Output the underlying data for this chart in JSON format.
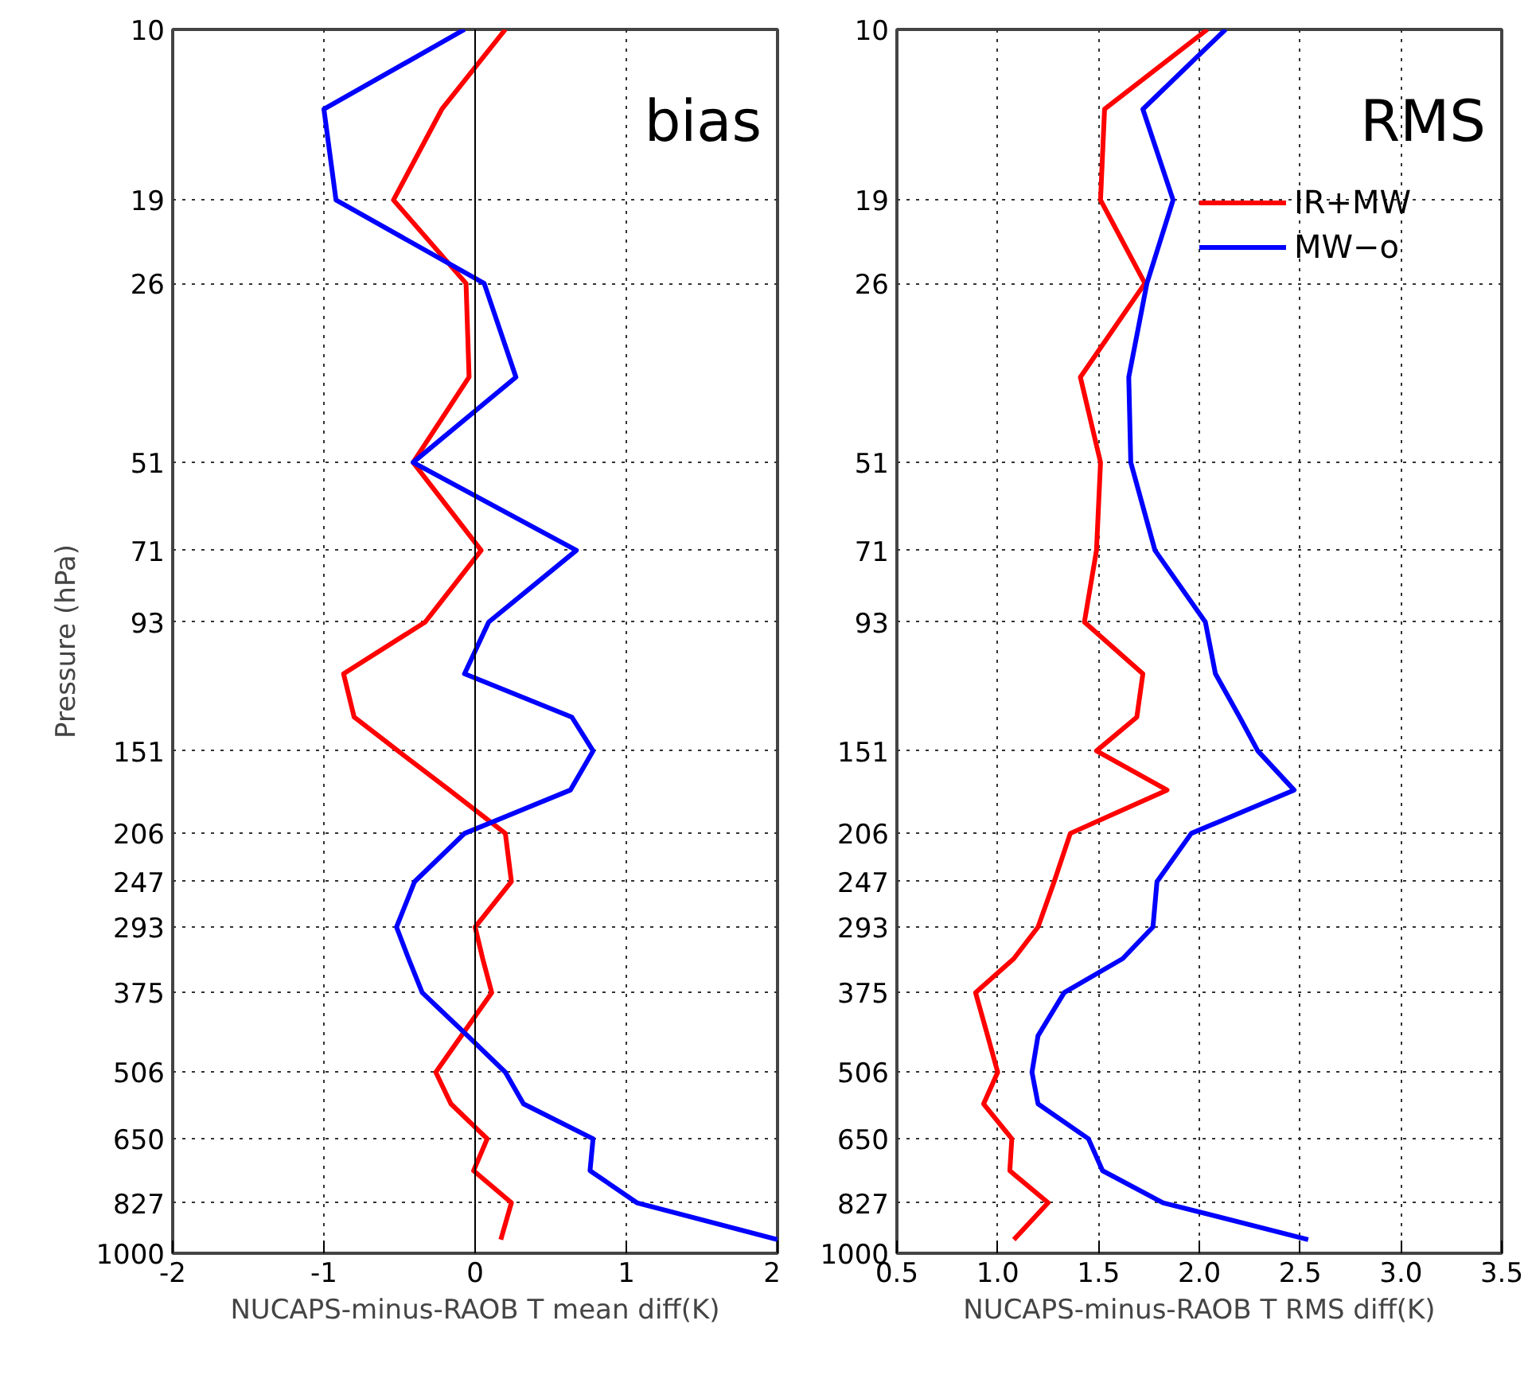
{
  "chart_data": [
    {
      "type": "line",
      "orientation": "horizontal",
      "log": "y",
      "grid": true,
      "legend": false,
      "ylabel": "Pressure (hPa)",
      "xlabel": "NUCAPS-minus-RAOB T mean diff(K)",
      "annotations": [
        "bias"
      ],
      "x": [
        10,
        13.5,
        19,
        26,
        37,
        51,
        71,
        93,
        113,
        133,
        151,
        175,
        206,
        247,
        293,
        330,
        375,
        441,
        506,
        570,
        650,
        733,
        827,
        950
      ],
      "xlim": [
        -2,
        2
      ],
      "xticks": [
        -2,
        -1,
        0,
        1,
        2
      ],
      "ylim": [
        1000,
        10
      ],
      "yticks": [
        10,
        19,
        26,
        51,
        71,
        93,
        151,
        206,
        247,
        293,
        375,
        506,
        650,
        827,
        1000
      ],
      "ref_lines": [
        {
          "axis": "x",
          "value": 0,
          "color": "#000000",
          "line_style": "solid"
        }
      ],
      "series": [
        {
          "color": "#ff0000",
          "values": [
            0.2,
            -0.22,
            -0.54,
            -0.06,
            -0.04,
            -0.41,
            0.04,
            -0.33,
            -0.87,
            -0.8,
            -0.51,
            -0.17,
            0.2,
            0.24,
            0.0,
            0.05,
            0.11,
            -0.09,
            -0.26,
            -0.16,
            0.08,
            -0.01,
            0.24,
            0.17
          ]
        },
        {
          "color": "#0000ff",
          "values": [
            -0.07,
            -1.0,
            -0.92,
            0.06,
            0.27,
            -0.41,
            0.67,
            0.09,
            -0.07,
            0.64,
            0.78,
            0.63,
            -0.07,
            -0.4,
            -0.52,
            -0.44,
            -0.35,
            -0.05,
            0.2,
            0.32,
            0.78,
            0.76,
            1.07,
            2.0
          ]
        }
      ]
    },
    {
      "type": "line",
      "orientation": "horizontal",
      "log": "y",
      "grid": true,
      "legend": "right",
      "xlabel": "NUCAPS-minus-RAOB T RMS diff(K)",
      "annotations": [
        "RMS"
      ],
      "x": [
        10,
        13.5,
        19,
        26,
        37,
        51,
        71,
        93,
        113,
        133,
        151,
        175,
        206,
        247,
        293,
        330,
        375,
        441,
        506,
        570,
        650,
        733,
        827,
        950
      ],
      "xlim": [
        0.5,
        3.5
      ],
      "xticks": [
        0.5,
        {
          "value": 1,
          "label": "1.0"
        },
        1.5,
        {
          "value": 2,
          "label": "2.0"
        },
        2.5,
        {
          "value": 3,
          "label": "3.0"
        },
        3.5
      ],
      "ylim": [
        1000,
        10
      ],
      "yticks": [
        10,
        19,
        26,
        51,
        71,
        93,
        151,
        206,
        247,
        293,
        375,
        506,
        650,
        827,
        1000
      ],
      "series": [
        {
          "name": "IR+MW",
          "color": "#ff0000",
          "values": [
            2.04,
            1.53,
            1.51,
            1.73,
            1.41,
            1.51,
            1.49,
            1.43,
            1.72,
            1.69,
            1.49,
            1.84,
            1.36,
            1.28,
            1.2,
            1.08,
            0.89,
            0.95,
            1.0,
            0.93,
            1.07,
            1.06,
            1.25,
            1.08
          ]
        },
        {
          "name": "MW−o",
          "color": "#0000ff",
          "values": [
            2.13,
            1.72,
            1.87,
            1.74,
            1.65,
            1.66,
            1.78,
            2.03,
            2.08,
            2.2,
            2.29,
            2.47,
            1.96,
            1.79,
            1.77,
            1.62,
            1.33,
            1.2,
            1.17,
            1.2,
            1.45,
            1.52,
            1.82,
            2.54
          ]
        }
      ]
    }
  ]
}
